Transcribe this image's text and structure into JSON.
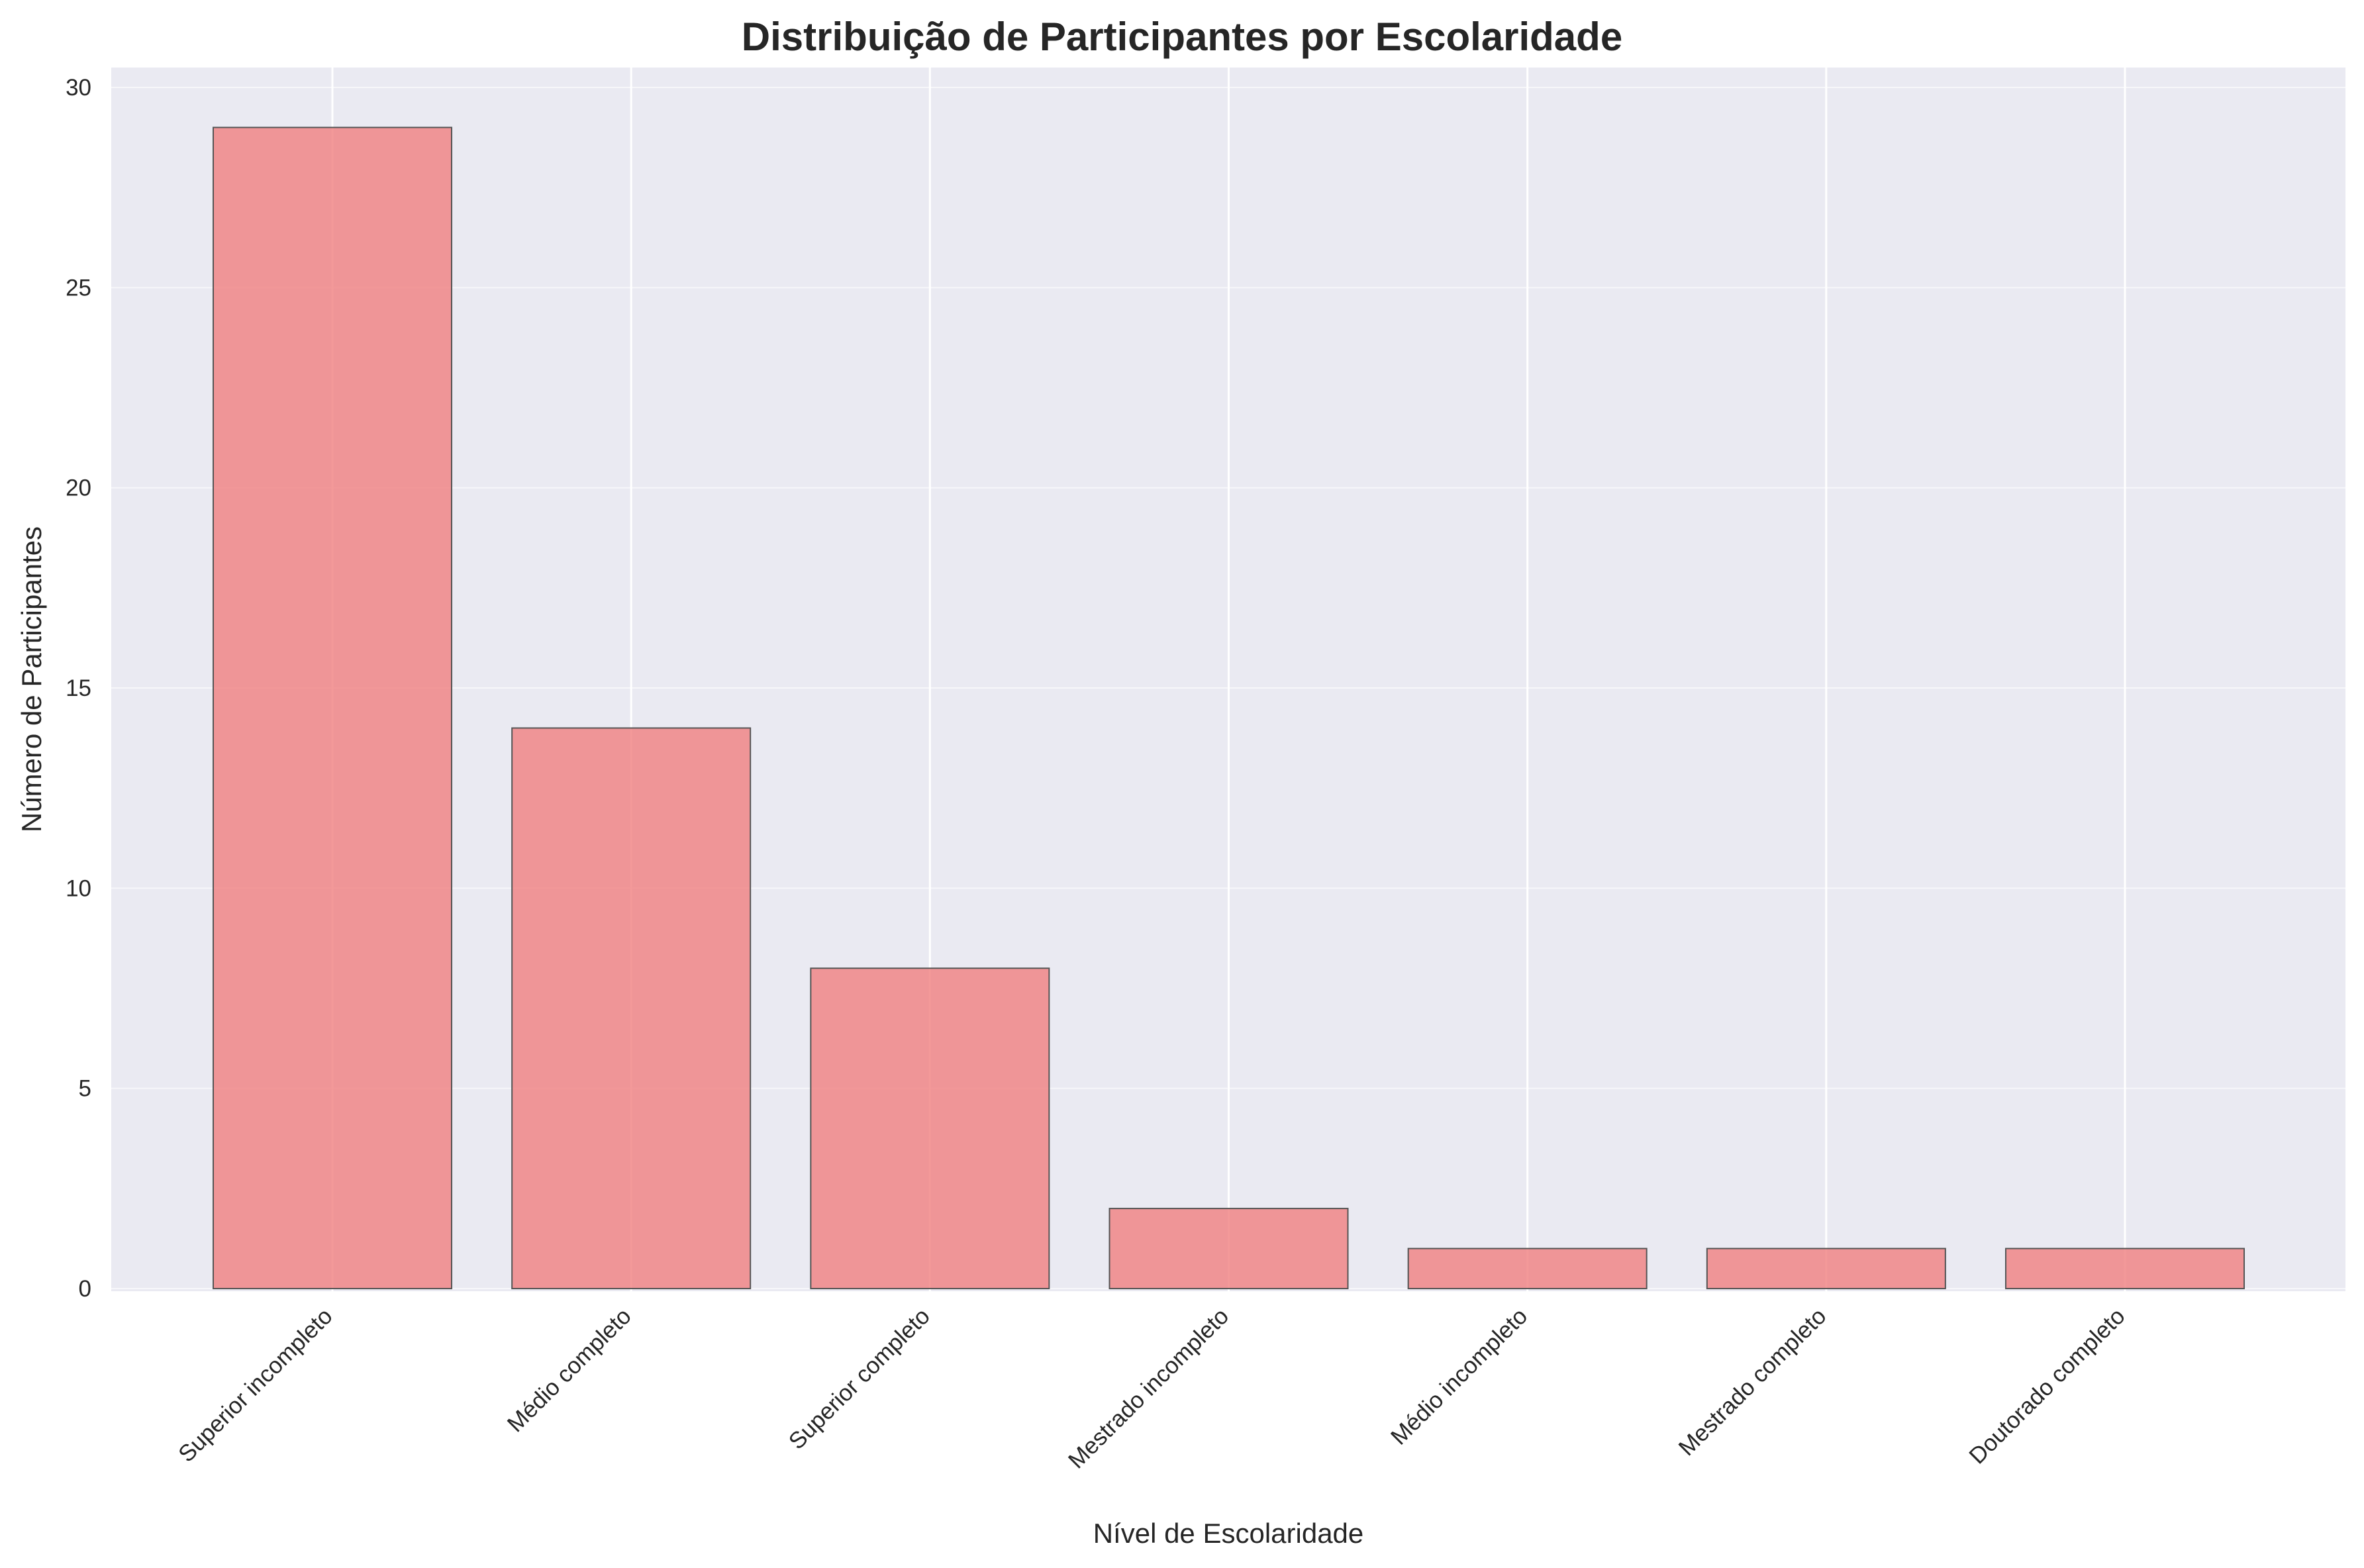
{
  "chart_data": {
    "type": "bar",
    "title": "Distribuição de Participantes por Escolaridade",
    "xlabel": "Nível de Escolaridade",
    "ylabel": "Número de Participantes",
    "categories": [
      "Superior incompleto",
      "Médio completo",
      "Superior completo",
      "Mestrado incompleto",
      "Médio incompleto",
      "Mestrado completo",
      "Doutorado completo"
    ],
    "values": [
      29,
      14,
      8,
      2,
      1,
      1,
      1
    ],
    "ylim": [
      0,
      30.5
    ],
    "yticks": [
      0,
      5,
      10,
      15,
      20,
      25,
      30
    ],
    "grid": true,
    "colors": {
      "background": "#eaeaf2",
      "bar_fill": "#f08080",
      "bar_edge": "#555555",
      "grid": "#ffffff"
    }
  }
}
